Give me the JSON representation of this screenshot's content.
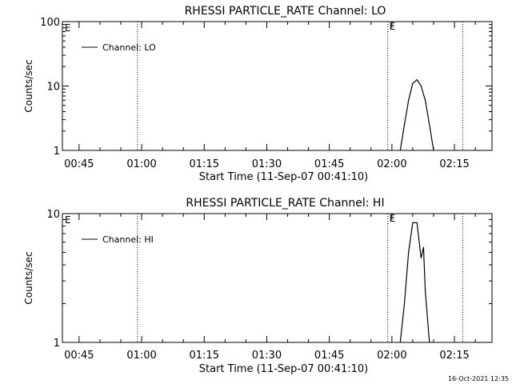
{
  "footer_timestamp": "16-Oct-2021 12:35",
  "chart_data": [
    {
      "type": "line",
      "title": "RHESSI PARTICLE_RATE Channel: LO",
      "xlabel": "Start Time (11-Sep-07 00:41:10)",
      "ylabel": "Counts/sec",
      "y_scale": "log",
      "ylim": [
        1,
        100
      ],
      "y_ticks": [
        1,
        10,
        100
      ],
      "y_tick_labels": [
        "1",
        "10",
        "100"
      ],
      "xlim": [
        "00:41",
        "02:24"
      ],
      "x_ticks": [
        "00:45",
        "01:00",
        "01:15",
        "01:30",
        "01:45",
        "02:00",
        "02:15"
      ],
      "legend": {
        "placement": "top-left",
        "entries": [
          "Channel: LO"
        ]
      },
      "event_markers": [
        {
          "time": "00:59",
          "label": ""
        },
        {
          "time": "01:59",
          "label": "E"
        },
        {
          "time": "02:17",
          "label": ""
        }
      ],
      "corner_label": "E",
      "series": [
        {
          "name": "Channel: LO",
          "x": [
            "02:02",
            "02:03",
            "02:04",
            "02:05",
            "02:06",
            "02:07",
            "02:08",
            "02:09",
            "02:10"
          ],
          "y": [
            1,
            2.5,
            6,
            11,
            12.5,
            10,
            6,
            2.5,
            1
          ]
        }
      ]
    },
    {
      "type": "line",
      "title": "RHESSI PARTICLE_RATE Channel: HI",
      "xlabel": "Start Time (11-Sep-07 00:41:10)",
      "ylabel": "Counts/sec",
      "y_scale": "log",
      "ylim": [
        1,
        10
      ],
      "y_ticks": [
        1,
        10
      ],
      "y_tick_labels": [
        "1",
        "10"
      ],
      "xlim": [
        "00:41",
        "02:24"
      ],
      "x_ticks": [
        "00:45",
        "01:00",
        "01:15",
        "01:30",
        "01:45",
        "02:00",
        "02:15"
      ],
      "legend": {
        "placement": "top-left",
        "entries": [
          "Channel: HI"
        ]
      },
      "event_markers": [
        {
          "time": "00:59",
          "label": ""
        },
        {
          "time": "01:59",
          "label": "E"
        },
        {
          "time": "02:17",
          "label": ""
        }
      ],
      "corner_label": "E",
      "series": [
        {
          "name": "Channel: HI",
          "x": [
            "02:02",
            "02:03",
            "02:04",
            "02:05",
            "02:06",
            "02:07",
            "02:07",
            "02:08",
            "02:09"
          ],
          "y": [
            1,
            2,
            5,
            8.5,
            8.5,
            4.5,
            5.5,
            2.5,
            1
          ]
        }
      ]
    }
  ]
}
